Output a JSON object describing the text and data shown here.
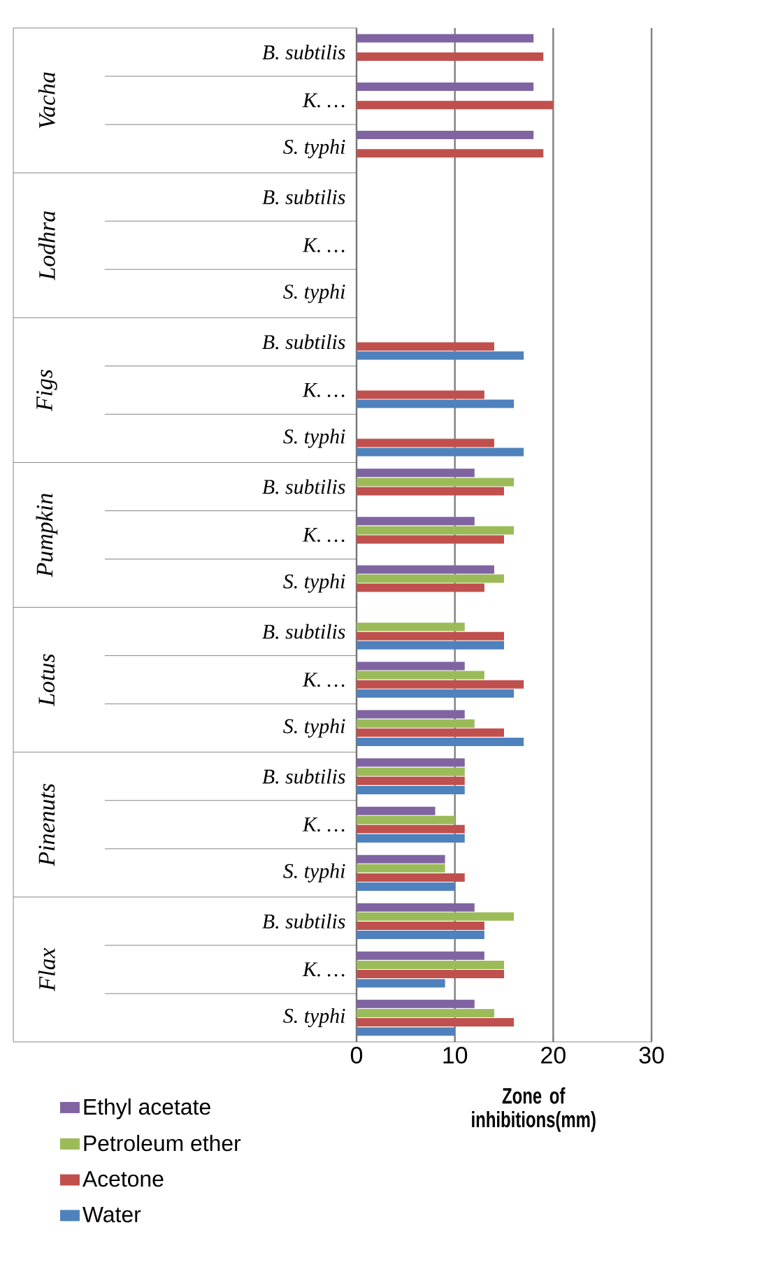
{
  "chart_data": {
    "type": "bar",
    "orientation": "horizontal",
    "categories": [
      "B. subtilis",
      "K. …",
      "S. typhi",
      "B. subtilis",
      "K. …",
      "S. typhi",
      "B. subtilis",
      "K. …",
      "S. typhi",
      "B. subtilis",
      "K. …",
      "S. typhi",
      "B. subtilis",
      "K. …",
      "S. typhi",
      "B. subtilis",
      "K. …",
      "S. typhi",
      "B. subtilis",
      "K. …",
      "S. typhi"
    ],
    "annotations": [
      "Vacha",
      "Lodhra",
      "Figs",
      "Pumpkin",
      "Lotus",
      "Pinenuts",
      "Flax"
    ],
    "xlabel": "Zone of inhibitions(mm)",
    "xlim": [
      0,
      30
    ],
    "xticks": [
      0,
      10,
      20,
      30
    ],
    "grid": "x",
    "legend": "bottom left",
    "series": [
      {
        "name": "Ethyl acetate",
        "color": "#8064a2",
        "values": [
          18,
          18,
          18,
          null,
          null,
          null,
          null,
          null,
          null,
          12,
          12,
          14,
          null,
          11,
          11,
          11,
          8,
          9,
          12,
          13,
          12
        ]
      },
      {
        "name": "Petroleum ether",
        "color": "#9bbb59",
        "values": [
          null,
          null,
          null,
          null,
          null,
          null,
          null,
          null,
          null,
          16,
          16,
          15,
          11,
          13,
          12,
          11,
          10,
          9,
          16,
          15,
          14
        ]
      },
      {
        "name": "Acetone",
        "color": "#c0504d",
        "values": [
          19,
          20,
          19,
          null,
          null,
          null,
          14,
          13,
          14,
          15,
          15,
          13,
          15,
          17,
          15,
          11,
          11,
          11,
          13,
          15,
          16
        ]
      },
      {
        "name": "Water",
        "color": "#4f81bd",
        "values": [
          null,
          null,
          null,
          null,
          null,
          null,
          17,
          16,
          17,
          null,
          null,
          null,
          15,
          16,
          17,
          11,
          11,
          10,
          13,
          9,
          10
        ]
      }
    ]
  }
}
